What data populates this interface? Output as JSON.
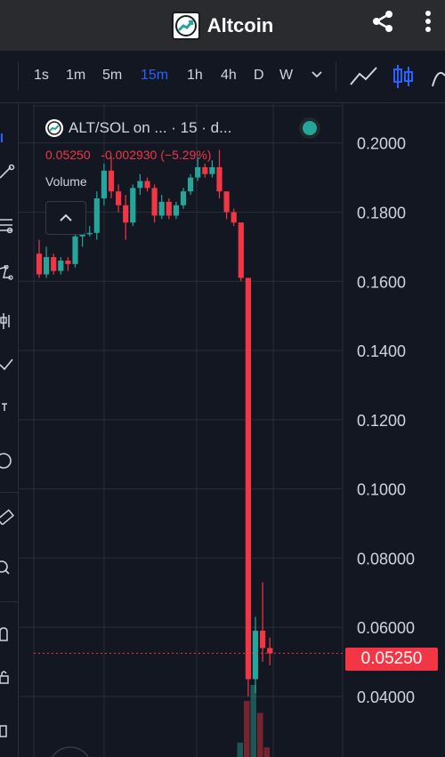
{
  "app": {
    "title": "Altcoin"
  },
  "toolbar": {
    "timeframes": [
      "1s",
      "1m",
      "5m",
      "15m",
      "1h",
      "4h",
      "D",
      "W"
    ],
    "active_timeframe": "15m"
  },
  "legend": {
    "symbol": "ALT/SOL on ... · 15 · d...",
    "price": "0.05250",
    "change": "-0.002930",
    "change_pct": "(−5.29%)",
    "volume_label": "Volume"
  },
  "current_price_label": "0.05250",
  "colors": {
    "up": "#26a69a",
    "down": "#f23645",
    "background": "#131722",
    "grid": "#2a2e39",
    "active": "#2962ff"
  },
  "chart_data": {
    "type": "candlestick",
    "y_ticks": [
      "0.2000",
      "0.1800",
      "0.1600",
      "0.1400",
      "0.1200",
      "0.1000",
      "0.08000",
      "0.06000",
      "0.04000"
    ],
    "y_tick_values": [
      0.2,
      0.18,
      0.16,
      0.14,
      0.12,
      0.1,
      0.08,
      0.06,
      0.04
    ],
    "ylim": [
      0.0225,
      0.2115
    ],
    "last_price": 0.0525,
    "candles": [
      {
        "o": 0.168,
        "h": 0.172,
        "c": 0.162,
        "l": 0.161
      },
      {
        "o": 0.162,
        "h": 0.17,
        "c": 0.167,
        "l": 0.161
      },
      {
        "o": 0.167,
        "h": 0.168,
        "c": 0.163,
        "l": 0.162
      },
      {
        "o": 0.163,
        "h": 0.167,
        "c": 0.166,
        "l": 0.162
      },
      {
        "o": 0.166,
        "h": 0.167,
        "c": 0.165,
        "l": 0.163
      },
      {
        "o": 0.165,
        "h": 0.175,
        "c": 0.173,
        "l": 0.164
      },
      {
        "o": 0.173,
        "h": 0.175,
        "c": 0.174,
        "l": 0.17
      },
      {
        "o": 0.174,
        "h": 0.176,
        "c": 0.174,
        "l": 0.173
      },
      {
        "o": 0.174,
        "h": 0.186,
        "c": 0.184,
        "l": 0.172
      },
      {
        "o": 0.184,
        "h": 0.194,
        "c": 0.192,
        "l": 0.182
      },
      {
        "o": 0.192,
        "h": 0.196,
        "c": 0.186,
        "l": 0.184
      },
      {
        "o": 0.186,
        "h": 0.188,
        "c": 0.182,
        "l": 0.18
      },
      {
        "o": 0.182,
        "h": 0.185,
        "c": 0.177,
        "l": 0.172
      },
      {
        "o": 0.177,
        "h": 0.188,
        "c": 0.187,
        "l": 0.176
      },
      {
        "o": 0.187,
        "h": 0.191,
        "c": 0.189,
        "l": 0.185
      },
      {
        "o": 0.189,
        "h": 0.19,
        "c": 0.187,
        "l": 0.186
      },
      {
        "o": 0.187,
        "h": 0.188,
        "c": 0.179,
        "l": 0.177
      },
      {
        "o": 0.179,
        "h": 0.185,
        "c": 0.183,
        "l": 0.178
      },
      {
        "o": 0.183,
        "h": 0.184,
        "c": 0.179,
        "l": 0.178
      },
      {
        "o": 0.179,
        "h": 0.183,
        "c": 0.182,
        "l": 0.178
      },
      {
        "o": 0.182,
        "h": 0.187,
        "c": 0.186,
        "l": 0.181
      },
      {
        "o": 0.186,
        "h": 0.191,
        "c": 0.19,
        "l": 0.185
      },
      {
        "o": 0.19,
        "h": 0.196,
        "c": 0.193,
        "l": 0.189
      },
      {
        "o": 0.193,
        "h": 0.194,
        "c": 0.191,
        "l": 0.19
      },
      {
        "o": 0.191,
        "h": 0.195,
        "c": 0.193,
        "l": 0.19
      },
      {
        "o": 0.193,
        "h": 0.198,
        "c": 0.186,
        "l": 0.184
      },
      {
        "o": 0.186,
        "h": 0.186,
        "c": 0.18,
        "l": 0.178
      },
      {
        "o": 0.18,
        "h": 0.181,
        "c": 0.177,
        "l": 0.176
      },
      {
        "o": 0.177,
        "h": 0.177,
        "c": 0.161,
        "l": 0.16
      },
      {
        "o": 0.161,
        "h": 0.161,
        "c": 0.045,
        "l": 0.04
      },
      {
        "o": 0.045,
        "h": 0.063,
        "c": 0.059,
        "l": 0.041
      },
      {
        "o": 0.059,
        "h": 0.073,
        "c": 0.054,
        "l": 0.05
      },
      {
        "o": 0.054,
        "h": 0.057,
        "c": 0.0525,
        "l": 0.049
      }
    ],
    "volume_bars": [
      {
        "v": 0.0,
        "dir": "down"
      },
      {
        "v": 0.18,
        "dir": "up"
      },
      {
        "v": 0.7,
        "dir": "down"
      },
      {
        "v": 0.9,
        "dir": "up"
      },
      {
        "v": 0.55,
        "dir": "down"
      },
      {
        "v": 0.12,
        "dir": "down"
      }
    ]
  }
}
